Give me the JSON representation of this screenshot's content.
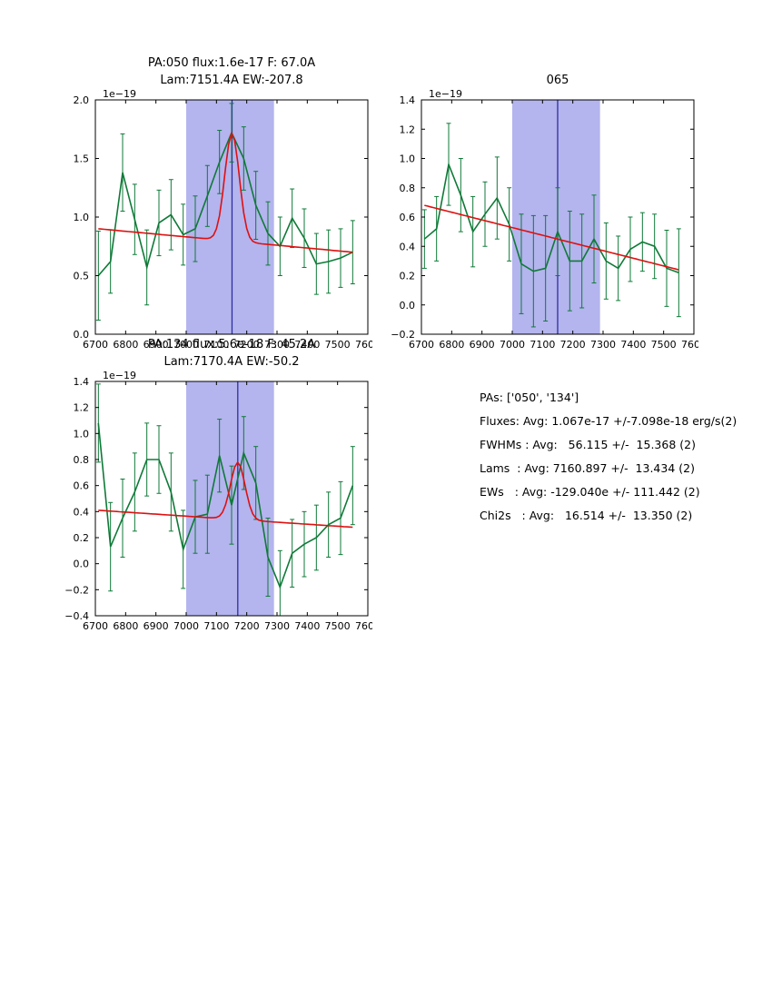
{
  "figure": {
    "background": "#ffffff"
  },
  "stats": {
    "lines": [
      "PAs: ['050', '134']",
      "Fluxes: Avg: 1.067e-17 +/-7.098e-18 erg/s(2)",
      "FWHMs : Avg:   56.115 +/-  15.368 (2)",
      "Lams  : Avg: 7160.897 +/-  13.434 (2)",
      "EWs   : Avg: -129.040e +/- 111.442 (2)",
      "Chi2s   : Avg:   16.514 +/-  13.350 (2)"
    ]
  },
  "chart_data": [
    {
      "type": "line",
      "title_lines": [
        "PA:050 flux:1.6e-17 F: 67.0A",
        "Lam:7151.4A EW:-207.8"
      ],
      "offset_label": "1e−19",
      "xlabel": "",
      "ylabel": "",
      "xlim": [
        6700,
        7600
      ],
      "ylim": [
        0.0,
        2.0
      ],
      "xticks": [
        6700,
        6800,
        6900,
        7000,
        7100,
        7200,
        7300,
        7400,
        7500,
        7600
      ],
      "yticks": [
        0.0,
        0.5,
        1.0,
        1.5,
        2.0
      ],
      "ytick_labels": [
        "0.0",
        "0.5",
        "1.0",
        "1.5",
        "2.0"
      ],
      "band": [
        7000,
        7290
      ],
      "band_color": "#b4b4ee",
      "vline": 7151.4,
      "vline_color": "#2e2ea0",
      "x": [
        6710,
        6750,
        6790,
        6830,
        6870,
        6910,
        6950,
        6990,
        7030,
        7070,
        7110,
        7150,
        7190,
        7230,
        7270,
        7310,
        7350,
        7390,
        7430,
        7470,
        7510,
        7550
      ],
      "series": [
        {
          "name": "spectrum",
          "color": "#0f7a38",
          "values": [
            0.5,
            0.62,
            1.38,
            0.98,
            0.57,
            0.95,
            1.02,
            0.85,
            0.9,
            1.18,
            1.47,
            1.72,
            1.5,
            1.1,
            0.86,
            0.75,
            0.99,
            0.82,
            0.6,
            0.62,
            0.65,
            0.7
          ],
          "errors": [
            0.38,
            0.27,
            0.33,
            0.3,
            0.32,
            0.28,
            0.3,
            0.26,
            0.28,
            0.26,
            0.27,
            0.25,
            0.27,
            0.29,
            0.27,
            0.25,
            0.25,
            0.25,
            0.26,
            0.27,
            0.25,
            0.27
          ]
        },
        {
          "name": "gaussian-fit",
          "color": "#dd1111",
          "fit": {
            "b0": 0.9,
            "b1": 0.7,
            "amp": 0.92,
            "center": 7151.4,
            "sigma": 24
          }
        }
      ]
    },
    {
      "type": "line",
      "title_lines": [
        "065"
      ],
      "offset_label": "1e−19",
      "xlabel": "",
      "ylabel": "",
      "xlim": [
        6700,
        7600
      ],
      "ylim": [
        -0.2,
        1.4
      ],
      "xticks": [
        6700,
        6800,
        6900,
        7000,
        7100,
        7200,
        7300,
        7400,
        7500,
        7600
      ],
      "yticks": [
        -0.2,
        0.0,
        0.2,
        0.4,
        0.6,
        0.8,
        1.0,
        1.2,
        1.4
      ],
      "ytick_labels": [
        "−0.2",
        "0.0",
        "0.2",
        "0.4",
        "0.6",
        "0.8",
        "1.0",
        "1.2",
        "1.4"
      ],
      "band": [
        7000,
        7290
      ],
      "band_color": "#b4b4ee",
      "vline": 7150.0,
      "vline_color": "#2e2ea0",
      "x": [
        6710,
        6750,
        6790,
        6830,
        6870,
        6910,
        6950,
        6990,
        7030,
        7070,
        7110,
        7150,
        7190,
        7230,
        7270,
        7310,
        7350,
        7390,
        7430,
        7470,
        7510,
        7550
      ],
      "series": [
        {
          "name": "spectrum",
          "color": "#0f7a38",
          "values": [
            0.45,
            0.52,
            0.96,
            0.75,
            0.5,
            0.62,
            0.73,
            0.55,
            0.28,
            0.23,
            0.25,
            0.5,
            0.3,
            0.3,
            0.45,
            0.3,
            0.25,
            0.38,
            0.43,
            0.4,
            0.25,
            0.22
          ],
          "errors": [
            0.2,
            0.22,
            0.28,
            0.25,
            0.24,
            0.22,
            0.28,
            0.25,
            0.34,
            0.38,
            0.36,
            0.3,
            0.34,
            0.32,
            0.3,
            0.26,
            0.22,
            0.22,
            0.2,
            0.22,
            0.26,
            0.3
          ]
        },
        {
          "name": "linear-fit",
          "color": "#dd1111",
          "fit": {
            "b0": 0.68,
            "b1": 0.24,
            "amp": 0.0,
            "center": 7160.9,
            "sigma": 24
          }
        }
      ]
    },
    {
      "type": "line",
      "title_lines": [
        "PA:134 flux:5.6e-18 F: 45.2A",
        "Lam:7170.4A EW:-50.2"
      ],
      "offset_label": "1e−19",
      "xlabel": "",
      "ylabel": "",
      "xlim": [
        6700,
        7600
      ],
      "ylim": [
        -0.4,
        1.4
      ],
      "xticks": [
        6700,
        6800,
        6900,
        7000,
        7100,
        7200,
        7300,
        7400,
        7500,
        7600
      ],
      "yticks": [
        -0.4,
        -0.2,
        0.0,
        0.2,
        0.4,
        0.6,
        0.8,
        1.0,
        1.2,
        1.4
      ],
      "ytick_labels": [
        "−0.4",
        "−0.2",
        "0.0",
        "0.2",
        "0.4",
        "0.6",
        "0.8",
        "1.0",
        "1.2",
        "1.4"
      ],
      "band": [
        7000,
        7290
      ],
      "band_color": "#b4b4ee",
      "vline": 7170.4,
      "vline_color": "#2e2ea0",
      "x": [
        6710,
        6750,
        6790,
        6830,
        6870,
        6910,
        6950,
        6990,
        7030,
        7070,
        7110,
        7150,
        7190,
        7230,
        7270,
        7310,
        7350,
        7390,
        7430,
        7470,
        7510,
        7550
      ],
      "series": [
        {
          "name": "spectrum",
          "color": "#0f7a38",
          "values": [
            1.08,
            0.13,
            0.35,
            0.55,
            0.8,
            0.8,
            0.55,
            0.11,
            0.36,
            0.38,
            0.83,
            0.45,
            0.85,
            0.62,
            0.05,
            -0.18,
            0.08,
            0.15,
            0.2,
            0.3,
            0.35,
            0.6
          ],
          "errors": [
            0.3,
            0.34,
            0.3,
            0.3,
            0.28,
            0.26,
            0.3,
            0.3,
            0.28,
            0.3,
            0.28,
            0.3,
            0.28,
            0.28,
            0.3,
            0.28,
            0.26,
            0.25,
            0.25,
            0.25,
            0.28,
            0.3
          ]
        },
        {
          "name": "gaussian-fit",
          "color": "#dd1111",
          "fit": {
            "b0": 0.41,
            "b1": 0.28,
            "amp": 0.44,
            "center": 7170.4,
            "sigma": 24
          }
        }
      ]
    }
  ]
}
